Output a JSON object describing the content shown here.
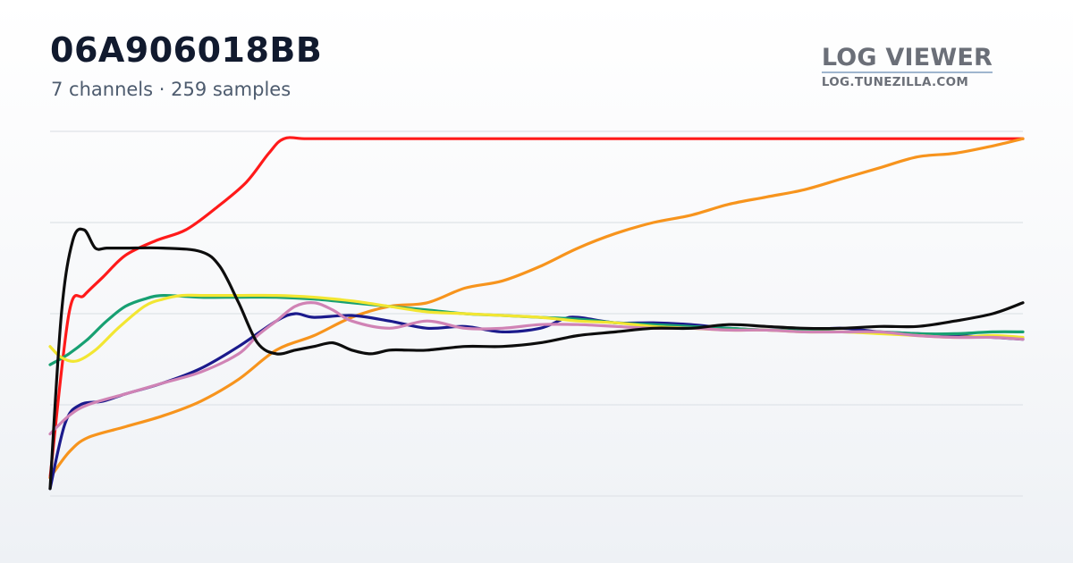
{
  "header": {
    "title": "06A906018BB",
    "subtitle": "7 channels · 259 samples"
  },
  "brand": {
    "name": "LOG VIEWER",
    "url": "LOG.TUNEZILLA.COM"
  },
  "chart_data": {
    "type": "line",
    "title": "06A906018BB",
    "grid": true,
    "legend": "none",
    "xlim": [
      0,
      258
    ],
    "ylim": [
      0,
      100
    ],
    "series": [
      {
        "color": "#ff1a1a",
        "x": [
          0,
          5,
          9,
          14,
          20,
          28,
          36,
          44,
          52,
          58,
          62,
          68,
          80,
          100,
          130,
          160,
          200,
          240,
          258
        ],
        "values": [
          5,
          50,
          55,
          60,
          66,
          70,
          73,
          79,
          86,
          94,
          98,
          98,
          98,
          98,
          98,
          98,
          98,
          98,
          98
        ]
      },
      {
        "color": "#f7941d",
        "x": [
          0,
          5,
          10,
          20,
          30,
          40,
          50,
          60,
          70,
          80,
          90,
          100,
          110,
          120,
          130,
          140,
          150,
          160,
          170,
          180,
          190,
          200,
          210,
          220,
          230,
          240,
          250,
          258
        ],
        "values": [
          5,
          12,
          16,
          19,
          22,
          26,
          32,
          40,
          44,
          49,
          52,
          53,
          57,
          59,
          63,
          68,
          72,
          75,
          77,
          80,
          82,
          84,
          87,
          90,
          93,
          94,
          96,
          98
        ]
      },
      {
        "color": "#1b1a8c",
        "x": [
          0,
          4,
          8,
          14,
          20,
          30,
          40,
          50,
          60,
          65,
          70,
          80,
          90,
          100,
          110,
          120,
          130,
          136,
          140,
          150,
          160,
          170,
          180,
          190,
          200,
          210,
          220,
          230,
          240,
          250,
          258
        ],
        "values": [
          2,
          20,
          25,
          26,
          28,
          31,
          35,
          41,
          48,
          50,
          49,
          49.5,
          48,
          46,
          46.5,
          45,
          46,
          48.5,
          49,
          47.5,
          47.5,
          47,
          46,
          45.5,
          45.5,
          46,
          45,
          44.5,
          44,
          43.5,
          43
        ]
      },
      {
        "color": "#17a072",
        "x": [
          0,
          5,
          10,
          15,
          20,
          25,
          30,
          40,
          50,
          60,
          70,
          80,
          90,
          100,
          110,
          120,
          130,
          140,
          150,
          160,
          170,
          180,
          190,
          200,
          210,
          220,
          230,
          240,
          250,
          258
        ],
        "values": [
          36,
          39,
          43,
          48,
          52,
          54,
          55,
          54.5,
          54.5,
          54.5,
          54,
          53,
          52,
          51,
          50,
          49.5,
          49,
          48.5,
          47.5,
          47,
          46.5,
          46,
          45.5,
          45.5,
          45,
          45,
          44.5,
          44.5,
          45,
          45
        ]
      },
      {
        "color": "#f2e632",
        "x": [
          0,
          3,
          7,
          12,
          18,
          25,
          30,
          35,
          40,
          50,
          60,
          70,
          80,
          90,
          100,
          110,
          120,
          130,
          140,
          150,
          160,
          170,
          180,
          190,
          200,
          210,
          220,
          230,
          240,
          250,
          258
        ],
        "values": [
          41,
          38,
          37,
          40,
          46,
          52,
          54,
          55,
          55,
          55,
          55,
          54.5,
          53.5,
          52,
          50.5,
          50,
          49.5,
          49,
          48,
          47.5,
          46.5,
          46,
          45.5,
          45.5,
          45,
          45,
          44.5,
          44,
          43.5,
          44,
          43.5
        ]
      },
      {
        "color": "#d083b5",
        "x": [
          0,
          5,
          10,
          20,
          30,
          40,
          50,
          55,
          60,
          65,
          70,
          75,
          80,
          90,
          100,
          110,
          120,
          130,
          140,
          150,
          160,
          170,
          180,
          190,
          200,
          210,
          220,
          230,
          240,
          250,
          258
        ],
        "values": [
          17,
          22,
          25,
          28,
          31,
          34,
          39,
          44,
          48,
          52,
          53,
          51,
          48,
          46,
          48,
          46,
          46,
          47,
          47,
          46.5,
          46,
          46,
          45.5,
          45.5,
          45,
          45,
          45,
          44,
          43.5,
          43.5,
          43
        ]
      },
      {
        "color": "#0d0d0d",
        "x": [
          0,
          3,
          6,
          9,
          12,
          15,
          20,
          30,
          40,
          45,
          50,
          55,
          60,
          65,
          70,
          75,
          80,
          85,
          90,
          95,
          100,
          110,
          120,
          130,
          140,
          150,
          160,
          170,
          180,
          190,
          200,
          210,
          220,
          230,
          240,
          250,
          258
        ],
        "values": [
          2,
          50,
          70,
          73,
          68,
          68,
          68,
          68,
          67,
          63,
          53,
          42,
          39,
          40,
          41,
          42,
          40,
          39,
          40,
          40,
          40,
          41,
          41,
          42,
          44,
          45,
          46,
          46,
          47,
          46.5,
          46,
          46,
          46.5,
          46.5,
          48,
          50,
          53
        ]
      }
    ]
  }
}
